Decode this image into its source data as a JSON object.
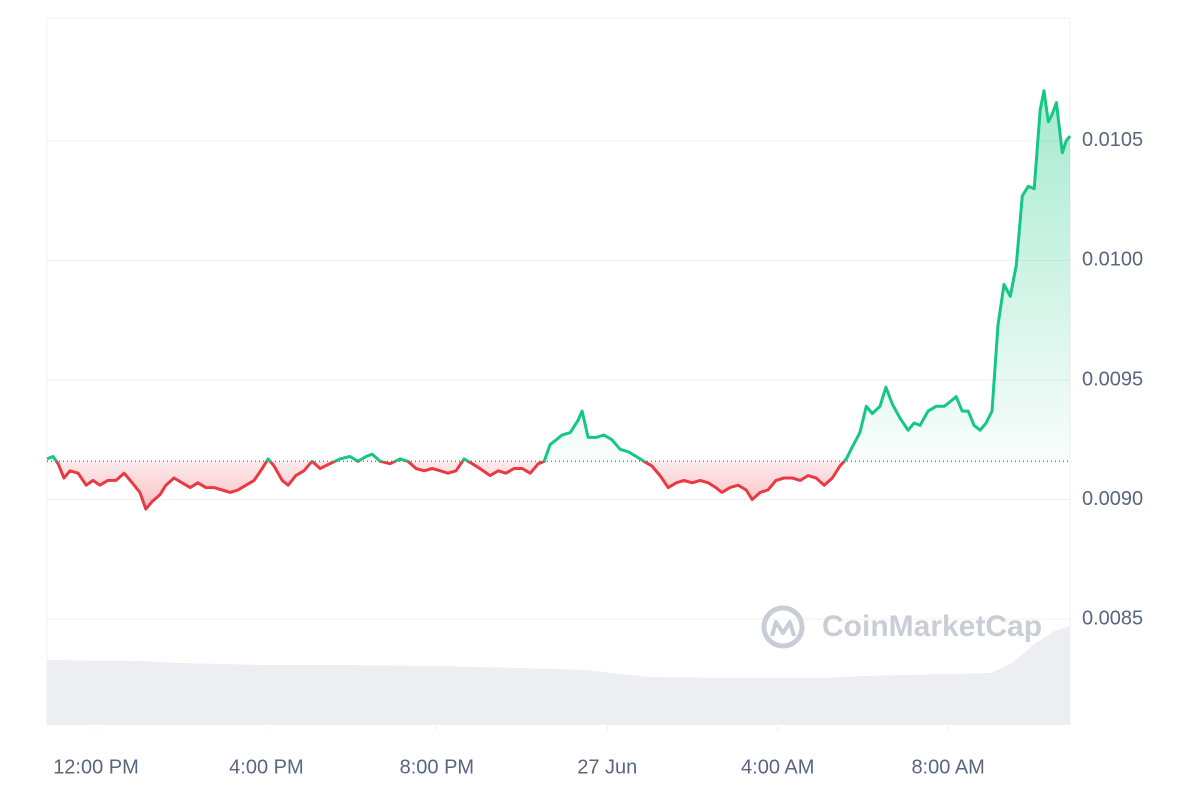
{
  "chart_data": {
    "type": "line",
    "watermark": "CoinMarketCap",
    "up_color": "#16c784",
    "down_color": "#ea3943",
    "baseline": 0.00916,
    "grid": true,
    "ylim": [
      0.008057,
      0.011014
    ],
    "yticks": [
      0.0085,
      {
        "value": 0.009,
        "label": "0.0090"
      },
      0.0095,
      {
        "value": 0.01,
        "label": "0.0100"
      },
      0.0105
    ],
    "xlim": [
      -1.15,
      22.86
    ],
    "xticks": [
      {
        "value": 0,
        "label": "12:00 PM"
      },
      {
        "value": 4,
        "label": "4:00 PM"
      },
      {
        "value": 8,
        "label": "8:00 PM"
      },
      {
        "value": 12,
        "label": "27 Jun"
      },
      {
        "value": 16,
        "label": "4:00 AM"
      },
      {
        "value": 20,
        "label": "8:00 AM"
      }
    ],
    "x": [
      -1.15,
      -1.01,
      -0.89,
      -0.75,
      -0.61,
      -0.42,
      -0.23,
      -0.07,
      0.09,
      0.28,
      0.47,
      0.66,
      0.85,
      1.03,
      1.17,
      1.31,
      1.5,
      1.64,
      1.83,
      2.02,
      2.21,
      2.39,
      2.58,
      2.77,
      2.96,
      3.15,
      3.33,
      3.52,
      3.71,
      3.9,
      4.04,
      4.18,
      4.37,
      4.51,
      4.69,
      4.88,
      5.07,
      5.26,
      5.49,
      5.73,
      5.96,
      6.15,
      6.34,
      6.48,
      6.67,
      6.9,
      7.14,
      7.32,
      7.51,
      7.7,
      7.89,
      8.08,
      8.26,
      8.45,
      8.64,
      8.83,
      9.01,
      9.25,
      9.44,
      9.62,
      9.81,
      10.0,
      10.19,
      10.38,
      10.52,
      10.66,
      10.8,
      10.94,
      11.13,
      11.31,
      11.41,
      11.55,
      11.74,
      11.92,
      12.11,
      12.3,
      12.49,
      12.68,
      12.86,
      13.05,
      13.24,
      13.43,
      13.62,
      13.8,
      13.99,
      14.18,
      14.37,
      14.55,
      14.69,
      14.88,
      15.07,
      15.26,
      15.4,
      15.59,
      15.77,
      15.96,
      16.15,
      16.34,
      16.53,
      16.71,
      16.9,
      17.09,
      17.28,
      17.46,
      17.61,
      17.75,
      17.93,
      18.08,
      18.22,
      18.4,
      18.54,
      18.69,
      18.87,
      19.06,
      19.2,
      19.34,
      19.53,
      19.72,
      19.91,
      20.05,
      20.19,
      20.33,
      20.47,
      20.61,
      20.75,
      20.89,
      21.03,
      21.17,
      21.31,
      21.46,
      21.6,
      21.74,
      21.88,
      22.02,
      22.16,
      22.25,
      22.35,
      22.44,
      22.54,
      22.68,
      22.77,
      22.86
    ],
    "values": [
      0.00917,
      0.00918,
      0.00915,
      0.00909,
      0.00912,
      0.00911,
      0.00906,
      0.00908,
      0.00906,
      0.00908,
      0.00908,
      0.00911,
      0.00907,
      0.00903,
      0.00896,
      0.00899,
      0.00902,
      0.00906,
      0.00909,
      0.00907,
      0.00905,
      0.00907,
      0.00905,
      0.00905,
      0.00904,
      0.00903,
      0.00904,
      0.00906,
      0.00908,
      0.00913,
      0.00917,
      0.00914,
      0.00908,
      0.00906,
      0.0091,
      0.00912,
      0.00916,
      0.00913,
      0.00915,
      0.00917,
      0.00918,
      0.00916,
      0.00918,
      0.00919,
      0.00916,
      0.00915,
      0.00917,
      0.00916,
      0.00913,
      0.00912,
      0.00913,
      0.00912,
      0.00911,
      0.00912,
      0.00917,
      0.00915,
      0.00913,
      0.0091,
      0.00912,
      0.00911,
      0.00913,
      0.00913,
      0.00911,
      0.00915,
      0.00916,
      0.00923,
      0.00925,
      0.00927,
      0.00928,
      0.00933,
      0.00937,
      0.00926,
      0.00926,
      0.00927,
      0.00925,
      0.00921,
      0.0092,
      0.00918,
      0.00916,
      0.00914,
      0.0091,
      0.00905,
      0.00907,
      0.00908,
      0.00907,
      0.00908,
      0.00907,
      0.00905,
      0.00903,
      0.00905,
      0.00906,
      0.00904,
      0.009,
      0.00903,
      0.00904,
      0.00908,
      0.00909,
      0.00909,
      0.00908,
      0.0091,
      0.00909,
      0.00906,
      0.00909,
      0.00914,
      0.00917,
      0.00922,
      0.00928,
      0.00939,
      0.00936,
      0.00939,
      0.00947,
      0.0094,
      0.00934,
      0.00929,
      0.00932,
      0.00931,
      0.00937,
      0.00939,
      0.00939,
      0.00941,
      0.00943,
      0.00937,
      0.00937,
      0.00931,
      0.00929,
      0.00932,
      0.00937,
      0.00973,
      0.0099,
      0.00985,
      0.00998,
      0.01027,
      0.01031,
      0.0103,
      0.01063,
      0.01071,
      0.01058,
      0.01061,
      0.01066,
      0.01045,
      0.0105,
      0.01052
    ],
    "volume": {
      "color": "#eceef2",
      "x": [
        -1.15,
        1,
        2,
        4,
        6,
        8,
        10,
        11.5,
        13,
        15,
        17,
        18,
        19,
        20,
        21,
        21.5,
        22,
        22.5,
        22.86
      ],
      "values": [
        65,
        64,
        62,
        60,
        60,
        59,
        57,
        55,
        48,
        47,
        47,
        49,
        50,
        51,
        52,
        62,
        80,
        94,
        99
      ]
    }
  }
}
